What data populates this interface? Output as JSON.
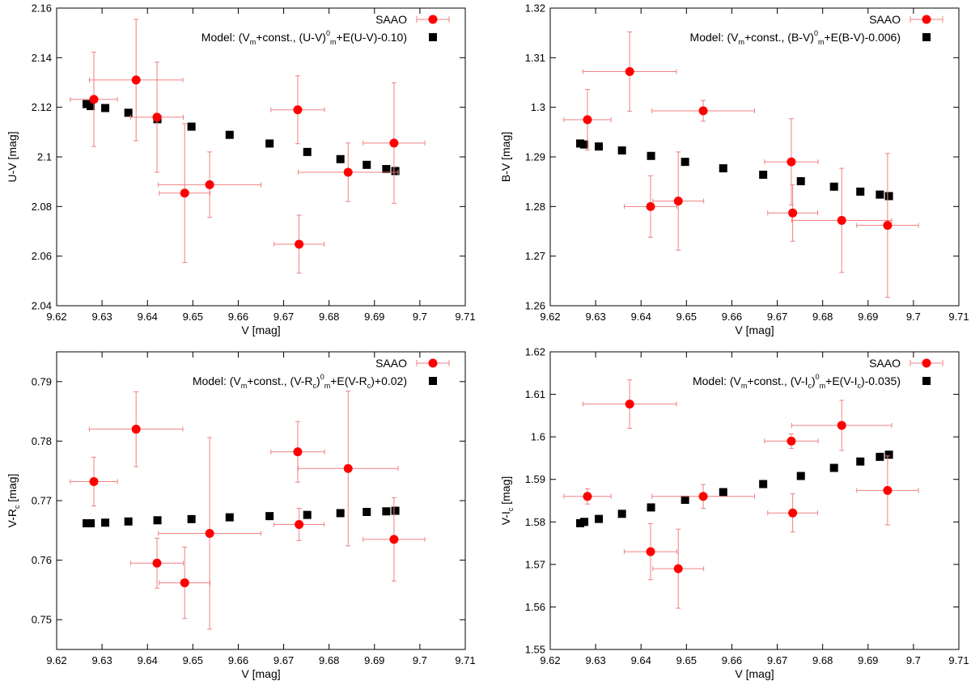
{
  "chart_data": [
    {
      "type": "scatter",
      "id": "uv",
      "xlabel": "V [mag]",
      "ylabel": "U-V [mag]",
      "xlim": [
        9.62,
        9.71
      ],
      "ylim": [
        2.04,
        2.16
      ],
      "xticks": [
        9.62,
        9.63,
        9.64,
        9.65,
        9.66,
        9.67,
        9.68,
        9.69,
        9.7,
        9.71
      ],
      "xtick_labels": [
        "9.62",
        "9.63",
        "9.64",
        "9.65",
        "9.66",
        "9.67",
        "9.68",
        "9.69",
        "9.7",
        "9.71"
      ],
      "yticks": [
        2.04,
        2.06,
        2.08,
        2.1,
        2.12,
        2.14,
        2.16
      ],
      "ytick_labels": [
        "2.04",
        "2.06",
        "2.08",
        "2.1",
        "2.12",
        "2.14",
        "2.16"
      ],
      "legend": {
        "placement": "top-right",
        "observed": "SAAO",
        "model_prefix": "Model: (V",
        "model_parts": [
          {
            "t": "Model: (V",
            "s": ""
          },
          {
            "t": "m",
            "s": "sub"
          },
          {
            "t": "+const., (U-V)",
            "s": ""
          },
          {
            "t": "0",
            "s": "sup"
          },
          {
            "t": "m",
            "s": "sub"
          },
          {
            "t": "+E(U-V)-0.10)",
            "s": ""
          }
        ]
      },
      "series": [
        {
          "name": "SAAO",
          "color": "#ff0000",
          "errcolor": "#f08080",
          "points": [
            {
              "x": 9.6282,
              "y": 2.1232,
              "xerr": 0.0052,
              "yerr": 0.019
            },
            {
              "x": 9.6375,
              "y": 2.131,
              "xerr": 0.0103,
              "yerr": 0.0245
            },
            {
              "x": 9.6421,
              "y": 2.116,
              "xerr": 0.0058,
              "yerr": 0.0222
            },
            {
              "x": 9.6482,
              "y": 2.0854,
              "xerr": 0.0056,
              "yerr": 0.028
            },
            {
              "x": 9.6537,
              "y": 2.0888,
              "xerr": 0.0113,
              "yerr": 0.0132
            },
            {
              "x": 9.6731,
              "y": 2.119,
              "xerr": 0.0059,
              "yerr": 0.0137
            },
            {
              "x": 9.6734,
              "y": 2.0648,
              "xerr": 0.0055,
              "yerr": 0.0117
            },
            {
              "x": 9.6842,
              "y": 2.0938,
              "xerr": 0.011,
              "yerr": 0.0118
            },
            {
              "x": 9.6943,
              "y": 2.1056,
              "xerr": 0.0068,
              "yerr": 0.0243
            }
          ]
        },
        {
          "name": "Model",
          "color": "#000000",
          "points": [
            {
              "x": 9.6266,
              "y": 2.1213
            },
            {
              "x": 9.6275,
              "y": 2.1205
            },
            {
              "x": 9.6307,
              "y": 2.1197
            },
            {
              "x": 9.6358,
              "y": 2.1178
            },
            {
              "x": 9.6422,
              "y": 2.1152
            },
            {
              "x": 9.6497,
              "y": 2.1122
            },
            {
              "x": 9.6581,
              "y": 2.1089
            },
            {
              "x": 9.6669,
              "y": 2.1054
            },
            {
              "x": 9.6752,
              "y": 2.102
            },
            {
              "x": 9.6825,
              "y": 2.0991
            },
            {
              "x": 9.6883,
              "y": 2.0968
            },
            {
              "x": 9.6926,
              "y": 2.0951
            },
            {
              "x": 9.6946,
              "y": 2.0943
            }
          ]
        }
      ]
    },
    {
      "type": "scatter",
      "id": "bv",
      "xlabel": "V [mag]",
      "ylabel": "B-V [mag]",
      "xlim": [
        9.62,
        9.71
      ],
      "ylim": [
        1.26,
        1.32
      ],
      "xticks": [
        9.62,
        9.63,
        9.64,
        9.65,
        9.66,
        9.67,
        9.68,
        9.69,
        9.7,
        9.71
      ],
      "xtick_labels": [
        "9.62",
        "9.63",
        "9.64",
        "9.65",
        "9.66",
        "9.67",
        "9.68",
        "9.69",
        "9.7",
        "9.71"
      ],
      "yticks": [
        1.26,
        1.27,
        1.28,
        1.29,
        1.3,
        1.31,
        1.32
      ],
      "ytick_labels": [
        "1.26",
        "1.27",
        "1.28",
        "1.29",
        "1.3",
        "1.31",
        "1.32"
      ],
      "legend": {
        "placement": "top-right",
        "observed": "SAAO",
        "model_parts": [
          {
            "t": "Model: (V",
            "s": ""
          },
          {
            "t": "m",
            "s": "sub"
          },
          {
            "t": "+const., (B-V)",
            "s": ""
          },
          {
            "t": "0",
            "s": "sup"
          },
          {
            "t": "m",
            "s": "sub"
          },
          {
            "t": "+E(B-V)-0.006)",
            "s": ""
          }
        ]
      },
      "series": [
        {
          "name": "SAAO",
          "color": "#ff0000",
          "errcolor": "#f08080",
          "points": [
            {
              "x": 9.6282,
              "y": 1.2975,
              "xerr": 0.0052,
              "yerr": 0.0061
            },
            {
              "x": 9.6375,
              "y": 1.3072,
              "xerr": 0.0103,
              "yerr": 0.008
            },
            {
              "x": 9.6421,
              "y": 1.28,
              "xerr": 0.0058,
              "yerr": 0.0062
            },
            {
              "x": 9.6482,
              "y": 1.2811,
              "xerr": 0.0056,
              "yerr": 0.0099
            },
            {
              "x": 9.6537,
              "y": 1.2993,
              "xerr": 0.0113,
              "yerr": 0.0021
            },
            {
              "x": 9.6731,
              "y": 1.289,
              "xerr": 0.0059,
              "yerr": 0.0087
            },
            {
              "x": 9.6734,
              "y": 1.2787,
              "xerr": 0.0055,
              "yerr": 0.0057
            },
            {
              "x": 9.6842,
              "y": 1.2772,
              "xerr": 0.011,
              "yerr": 0.0105
            },
            {
              "x": 9.6943,
              "y": 1.2762,
              "xerr": 0.0068,
              "yerr": 0.0145
            }
          ]
        },
        {
          "name": "Model",
          "color": "#000000",
          "points": [
            {
              "x": 9.6266,
              "y": 1.2927
            },
            {
              "x": 9.6275,
              "y": 1.2925
            },
            {
              "x": 9.6307,
              "y": 1.2921
            },
            {
              "x": 9.6358,
              "y": 1.2913
            },
            {
              "x": 9.6422,
              "y": 1.2902
            },
            {
              "x": 9.6497,
              "y": 1.289
            },
            {
              "x": 9.6581,
              "y": 1.2877
            },
            {
              "x": 9.6669,
              "y": 1.2864
            },
            {
              "x": 9.6752,
              "y": 1.2851
            },
            {
              "x": 9.6825,
              "y": 1.284
            },
            {
              "x": 9.6883,
              "y": 1.283
            },
            {
              "x": 9.6926,
              "y": 1.2824
            },
            {
              "x": 9.6946,
              "y": 1.2821
            }
          ]
        }
      ]
    },
    {
      "type": "scatter",
      "id": "vr",
      "xlabel": "V [mag]",
      "ylabel_parts": [
        {
          "t": "V-R",
          "s": ""
        },
        {
          "t": "c",
          "s": "sub"
        },
        {
          "t": " [mag]",
          "s": ""
        }
      ],
      "xlim": [
        9.62,
        9.71
      ],
      "ylim": [
        0.745,
        0.795
      ],
      "xticks": [
        9.62,
        9.63,
        9.64,
        9.65,
        9.66,
        9.67,
        9.68,
        9.69,
        9.7,
        9.71
      ],
      "xtick_labels": [
        "9.62",
        "9.63",
        "9.64",
        "9.65",
        "9.66",
        "9.67",
        "9.68",
        "9.69",
        "9.7",
        "9.71"
      ],
      "yticks": [
        0.75,
        0.76,
        0.77,
        0.78,
        0.79
      ],
      "ytick_labels": [
        "0.75",
        "0.76",
        "0.77",
        "0.78",
        "0.79"
      ],
      "legend": {
        "placement": "top-right",
        "observed": "SAAO",
        "model_parts": [
          {
            "t": "Model: (V",
            "s": ""
          },
          {
            "t": "m",
            "s": "sub"
          },
          {
            "t": "+const., (V-R",
            "s": ""
          },
          {
            "t": "c",
            "s": "sub"
          },
          {
            "t": ")",
            "s": ""
          },
          {
            "t": "0",
            "s": "sup"
          },
          {
            "t": "m",
            "s": "sub"
          },
          {
            "t": "+E(V-R",
            "s": ""
          },
          {
            "t": "c",
            "s": "sub"
          },
          {
            "t": ")+0.02)",
            "s": ""
          }
        ]
      },
      "series": [
        {
          "name": "SAAO",
          "color": "#ff0000",
          "errcolor": "#f08080",
          "points": [
            {
              "x": 9.6282,
              "y": 0.7732,
              "xerr": 0.0052,
              "yerr": 0.0041
            },
            {
              "x": 9.6375,
              "y": 0.782,
              "xerr": 0.0103,
              "yerr": 0.0063
            },
            {
              "x": 9.6421,
              "y": 0.7595,
              "xerr": 0.0058,
              "yerr": 0.0042
            },
            {
              "x": 9.6482,
              "y": 0.7562,
              "xerr": 0.0056,
              "yerr": 0.006
            },
            {
              "x": 9.6537,
              "y": 0.7645,
              "xerr": 0.0113,
              "yerr": 0.0161
            },
            {
              "x": 9.6731,
              "y": 0.7782,
              "xerr": 0.0059,
              "yerr": 0.0051
            },
            {
              "x": 9.6734,
              "y": 0.766,
              "xerr": 0.0055,
              "yerr": 0.0027
            },
            {
              "x": 9.6842,
              "y": 0.7754,
              "xerr": 0.011,
              "yerr": 0.013
            },
            {
              "x": 9.6943,
              "y": 0.7635,
              "xerr": 0.0068,
              "yerr": 0.007
            }
          ]
        },
        {
          "name": "Model",
          "color": "#000000",
          "points": [
            {
              "x": 9.6266,
              "y": 0.7662
            },
            {
              "x": 9.6275,
              "y": 0.7662
            },
            {
              "x": 9.6307,
              "y": 0.7663
            },
            {
              "x": 9.6358,
              "y": 0.7665
            },
            {
              "x": 9.6422,
              "y": 0.7667
            },
            {
              "x": 9.6497,
              "y": 0.7669
            },
            {
              "x": 9.6581,
              "y": 0.7672
            },
            {
              "x": 9.6669,
              "y": 0.7674
            },
            {
              "x": 9.6752,
              "y": 0.7676
            },
            {
              "x": 9.6825,
              "y": 0.7679
            },
            {
              "x": 9.6883,
              "y": 0.7681
            },
            {
              "x": 9.6926,
              "y": 0.7682
            },
            {
              "x": 9.6946,
              "y": 0.7683
            }
          ]
        }
      ]
    },
    {
      "type": "scatter",
      "id": "vi",
      "xlabel": "V [mag]",
      "ylabel_parts": [
        {
          "t": "V-I",
          "s": ""
        },
        {
          "t": "c",
          "s": "sub"
        },
        {
          "t": " [mag]",
          "s": ""
        }
      ],
      "xlim": [
        9.62,
        9.71
      ],
      "ylim": [
        1.55,
        1.62
      ],
      "xticks": [
        9.62,
        9.63,
        9.64,
        9.65,
        9.66,
        9.67,
        9.68,
        9.69,
        9.7,
        9.71
      ],
      "xtick_labels": [
        "9.62",
        "9.63",
        "9.64",
        "9.65",
        "9.66",
        "9.67",
        "9.68",
        "9.69",
        "9.7",
        "9.71"
      ],
      "yticks": [
        1.55,
        1.56,
        1.57,
        1.58,
        1.59,
        1.6,
        1.61,
        1.62
      ],
      "ytick_labels": [
        "1.55",
        "1.56",
        "1.57",
        "1.58",
        "1.59",
        "1.6",
        "1.61",
        "1.62"
      ],
      "legend": {
        "placement": "top-right",
        "observed": "SAAO",
        "model_parts": [
          {
            "t": "Model: (V",
            "s": ""
          },
          {
            "t": "m",
            "s": "sub"
          },
          {
            "t": "+const., (V-I",
            "s": ""
          },
          {
            "t": "c",
            "s": "sub"
          },
          {
            "t": ")",
            "s": ""
          },
          {
            "t": "0",
            "s": "sup"
          },
          {
            "t": "m",
            "s": "sub"
          },
          {
            "t": "+E(V-I",
            "s": ""
          },
          {
            "t": "c",
            "s": "sub"
          },
          {
            "t": ")-0.035)",
            "s": ""
          }
        ]
      },
      "series": [
        {
          "name": "SAAO",
          "color": "#ff0000",
          "errcolor": "#f08080",
          "points": [
            {
              "x": 9.6282,
              "y": 1.586,
              "xerr": 0.0052,
              "yerr": 0.0018
            },
            {
              "x": 9.6375,
              "y": 1.6077,
              "xerr": 0.0103,
              "yerr": 0.0057
            },
            {
              "x": 9.6421,
              "y": 1.573,
              "xerr": 0.0058,
              "yerr": 0.0066
            },
            {
              "x": 9.6482,
              "y": 1.569,
              "xerr": 0.0056,
              "yerr": 0.0093
            },
            {
              "x": 9.6537,
              "y": 1.586,
              "xerr": 0.0113,
              "yerr": 0.0028
            },
            {
              "x": 9.6731,
              "y": 1.599,
              "xerr": 0.0059,
              "yerr": 0.0017
            },
            {
              "x": 9.6734,
              "y": 1.5821,
              "xerr": 0.0055,
              "yerr": 0.0045
            },
            {
              "x": 9.6842,
              "y": 1.6027,
              "xerr": 0.011,
              "yerr": 0.0059
            },
            {
              "x": 9.6943,
              "y": 1.5874,
              "xerr": 0.0068,
              "yerr": 0.0081
            }
          ]
        },
        {
          "name": "Model",
          "color": "#000000",
          "points": [
            {
              "x": 9.6266,
              "y": 1.5797
            },
            {
              "x": 9.6275,
              "y": 1.58
            },
            {
              "x": 9.6307,
              "y": 1.5807
            },
            {
              "x": 9.6358,
              "y": 1.5819
            },
            {
              "x": 9.6422,
              "y": 1.5834
            },
            {
              "x": 9.6497,
              "y": 1.5852
            },
            {
              "x": 9.6581,
              "y": 1.587
            },
            {
              "x": 9.6669,
              "y": 1.5889
            },
            {
              "x": 9.6752,
              "y": 1.5908
            },
            {
              "x": 9.6825,
              "y": 1.5927
            },
            {
              "x": 9.6883,
              "y": 1.5942
            },
            {
              "x": 9.6926,
              "y": 1.5953
            },
            {
              "x": 9.6946,
              "y": 1.5958
            }
          ]
        }
      ]
    }
  ]
}
